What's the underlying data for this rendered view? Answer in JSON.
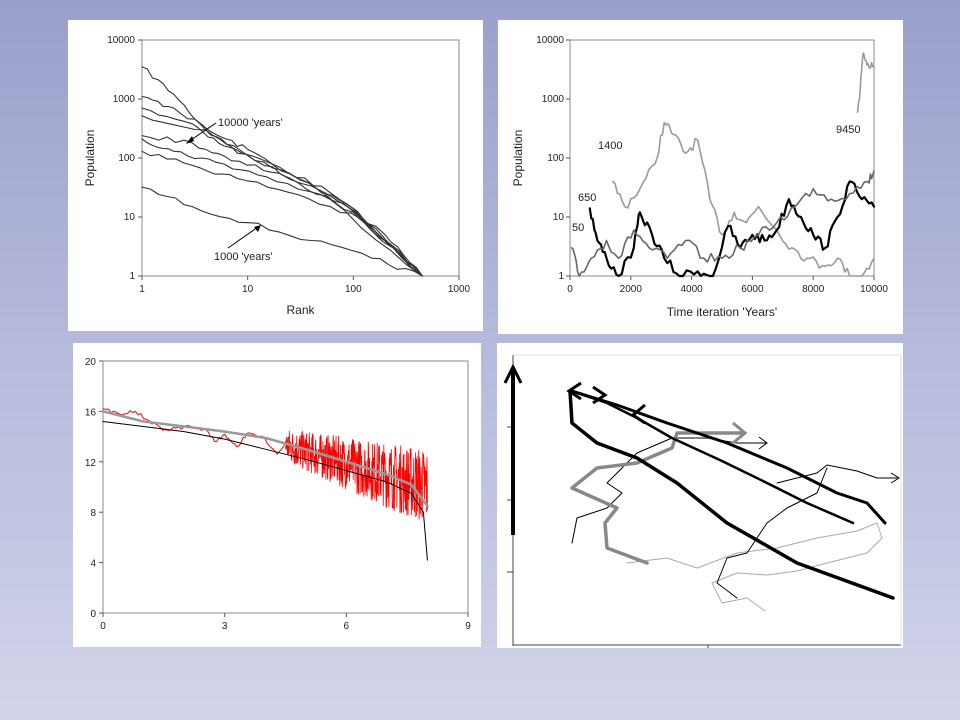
{
  "colors": {
    "background_top": "#9aa0cc",
    "background_bottom": "#d2d4ea",
    "red_series": "#ff0000",
    "gray_series": "#9a9a9a",
    "black_series": "#000000"
  },
  "chart_data": [
    {
      "type": "line",
      "scale": "log-log",
      "xlabel": "Rank",
      "ylabel": "Population",
      "xlim": [
        1,
        1000
      ],
      "ylim": [
        1,
        10000
      ],
      "x_ticks": [
        "1",
        "10",
        "100",
        "1000"
      ],
      "y_ticks": [
        "1",
        "10",
        "100",
        "1000",
        "10000"
      ],
      "annotations": [
        "10000 'years'",
        "1000 'years'"
      ],
      "series": [
        {
          "points": [
            [
              1,
              3500
            ],
            [
              2,
              1200
            ],
            [
              4,
              300
            ],
            [
              10,
              110
            ],
            [
              30,
              38
            ],
            [
              100,
              12
            ],
            [
              200,
              4
            ],
            [
              450,
              1
            ]
          ]
        },
        {
          "points": [
            [
              1,
              1100
            ],
            [
              2,
              700
            ],
            [
              5,
              250
            ],
            [
              10,
              140
            ],
            [
              30,
              45
            ],
            [
              100,
              13
            ],
            [
              450,
              1
            ]
          ]
        },
        {
          "points": [
            [
              1,
              700
            ],
            [
              3,
              380
            ],
            [
              6,
              160
            ],
            [
              20,
              70
            ],
            [
              60,
              26
            ],
            [
              200,
              5
            ],
            [
              450,
              1
            ]
          ]
        },
        {
          "points": [
            [
              1,
              520
            ],
            [
              4,
              300
            ],
            [
              8,
              120
            ],
            [
              25,
              55
            ],
            [
              100,
              14
            ],
            [
              450,
              1
            ]
          ]
        },
        {
          "points": [
            [
              1,
              240
            ],
            [
              3,
              180
            ],
            [
              7,
              90
            ],
            [
              20,
              55
            ],
            [
              80,
              17
            ],
            [
              450,
              1
            ]
          ]
        },
        {
          "points": [
            [
              1,
              210
            ],
            [
              2,
              130
            ],
            [
              5,
              85
            ],
            [
              15,
              48
            ],
            [
              60,
              20
            ],
            [
              450,
              1
            ]
          ]
        },
        {
          "points": [
            [
              1,
              130
            ],
            [
              3,
              75
            ],
            [
              8,
              45
            ],
            [
              30,
              24
            ],
            [
              120,
              9
            ],
            [
              450,
              1
            ]
          ]
        },
        {
          "points": [
            [
              1,
              32
            ],
            [
              3,
              15
            ],
            [
              10,
              8
            ],
            [
              40,
              4
            ],
            [
              150,
              2
            ],
            [
              450,
              1
            ]
          ]
        }
      ]
    },
    {
      "type": "line",
      "scale": "semilog-y",
      "xlabel": "Time iteration 'Years'",
      "ylabel": "Population",
      "xlim": [
        0,
        10000
      ],
      "ylim": [
        1,
        10000
      ],
      "x_ticks": [
        "0",
        "2000",
        "4000",
        "6000",
        "8000",
        "10000"
      ],
      "y_ticks": [
        "1",
        "10",
        "100",
        "1000",
        "10000"
      ],
      "annotations": [
        "1400",
        "650",
        "50",
        "9450"
      ],
      "series": [
        {
          "color": "#9a9a9a",
          "points": [
            [
              1400,
              40
            ],
            [
              1800,
              15
            ],
            [
              2300,
              30
            ],
            [
              2800,
              80
            ],
            [
              3100,
              400
            ],
            [
              3400,
              250
            ],
            [
              3800,
              120
            ],
            [
              4200,
              200
            ],
            [
              4600,
              20
            ],
            [
              5000,
              5
            ],
            [
              5400,
              12
            ],
            [
              5800,
              8
            ],
            [
              6200,
              15
            ],
            [
              6800,
              6
            ],
            [
              7300,
              3
            ],
            [
              7800,
              2
            ],
            [
              8300,
              1.5
            ],
            [
              8800,
              2
            ],
            [
              9200,
              1
            ],
            [
              9600,
              1
            ],
            [
              10000,
              2
            ]
          ]
        },
        {
          "color": "#000000",
          "points": [
            [
              650,
              14
            ],
            [
              900,
              4
            ],
            [
              1200,
              2
            ],
            [
              1600,
              1
            ],
            [
              2100,
              3
            ],
            [
              2300,
              12
            ],
            [
              2700,
              5
            ],
            [
              3100,
              2
            ],
            [
              3600,
              1
            ],
            [
              4200,
              1.2
            ],
            [
              4700,
              1
            ],
            [
              5200,
              7
            ],
            [
              5600,
              3
            ],
            [
              6000,
              5
            ],
            [
              6400,
              4
            ],
            [
              6800,
              6
            ],
            [
              7200,
              20
            ],
            [
              7600,
              10
            ],
            [
              8000,
              5
            ],
            [
              8400,
              3
            ],
            [
              8800,
              10
            ],
            [
              9200,
              40
            ],
            [
              9600,
              20
            ],
            [
              10000,
              15
            ]
          ]
        },
        {
          "color": "#666666",
          "points": [
            [
              50,
              3
            ],
            [
              300,
              1
            ],
            [
              700,
              2
            ],
            [
              1200,
              4
            ],
            [
              1600,
              2
            ],
            [
              2100,
              6
            ],
            [
              2600,
              3
            ],
            [
              3200,
              2
            ],
            [
              3800,
              4
            ],
            [
              4400,
              2
            ],
            [
              5000,
              2
            ],
            [
              5600,
              3
            ],
            [
              6200,
              5
            ],
            [
              6800,
              8
            ],
            [
              7400,
              15
            ],
            [
              8000,
              30
            ],
            [
              8600,
              20
            ],
            [
              9200,
              25
            ],
            [
              9800,
              40
            ],
            [
              10000,
              60
            ]
          ]
        },
        {
          "color": "#9a9a9a",
          "points": [
            [
              9450,
              600
            ],
            [
              9550,
              1500
            ],
            [
              9650,
              6000
            ],
            [
              9800,
              4000
            ],
            [
              10000,
              3500
            ]
          ]
        }
      ]
    },
    {
      "type": "line",
      "xlim": [
        0,
        9
      ],
      "ylim": [
        0,
        20
      ],
      "x_ticks": [
        "0",
        "3",
        "6",
        "9"
      ],
      "y_ticks": [
        "0",
        "4",
        "8",
        "12",
        "16",
        "20"
      ],
      "series": [
        {
          "color": "#000000",
          "points": [
            [
              0,
              15.2
            ],
            [
              1,
              14.8
            ],
            [
              2,
              14.4
            ],
            [
              3,
              13.8
            ],
            [
              4,
              13.0
            ],
            [
              5,
              12.2
            ],
            [
              6,
              11.3
            ],
            [
              7,
              10.4
            ],
            [
              7.6,
              9.5
            ],
            [
              7.9,
              8.0
            ],
            [
              8.0,
              4.2
            ]
          ]
        },
        {
          "color": "#9a9a9a",
          "points": [
            [
              0,
              16.0
            ],
            [
              1,
              15.2
            ],
            [
              2,
              14.8
            ],
            [
              3,
              14.4
            ],
            [
              4,
              13.9
            ],
            [
              5,
              13.0
            ],
            [
              6,
              12.0
            ],
            [
              7,
              11.0
            ],
            [
              7.6,
              10.2
            ],
            [
              8.0,
              8.5
            ]
          ]
        },
        {
          "color": "#ff0000",
          "points": [
            [
              0,
              16.2
            ],
            [
              0.4,
              15.8
            ],
            [
              0.8,
              16.0
            ],
            [
              1.2,
              15.0
            ],
            [
              1.6,
              14.5
            ],
            [
              2.0,
              14.8
            ],
            [
              2.5,
              14.6
            ],
            [
              2.8,
              13.6
            ],
            [
              3.0,
              14.2
            ],
            [
              3.3,
              13.2
            ],
            [
              3.6,
              14.3
            ],
            [
              4.0,
              13.8
            ],
            [
              4.3,
              12.6
            ],
            [
              4.6,
              14.0
            ]
          ]
        }
      ],
      "noise_band": {
        "x_range": [
          4.5,
          8.0
        ],
        "center_start": 13.3,
        "center_end": 10.0,
        "amplitude": 2.2
      }
    },
    {
      "type": "line",
      "series": [
        {
          "color": "#000000",
          "width": 3.5
        },
        {
          "color": "#000000",
          "width": 3
        },
        {
          "color": "#000000",
          "width": 2.5
        },
        {
          "color": "#888888",
          "width": 3.5
        },
        {
          "color": "#000000",
          "width": 1
        },
        {
          "color": "#aaaaaa",
          "width": 1
        }
      ]
    }
  ]
}
